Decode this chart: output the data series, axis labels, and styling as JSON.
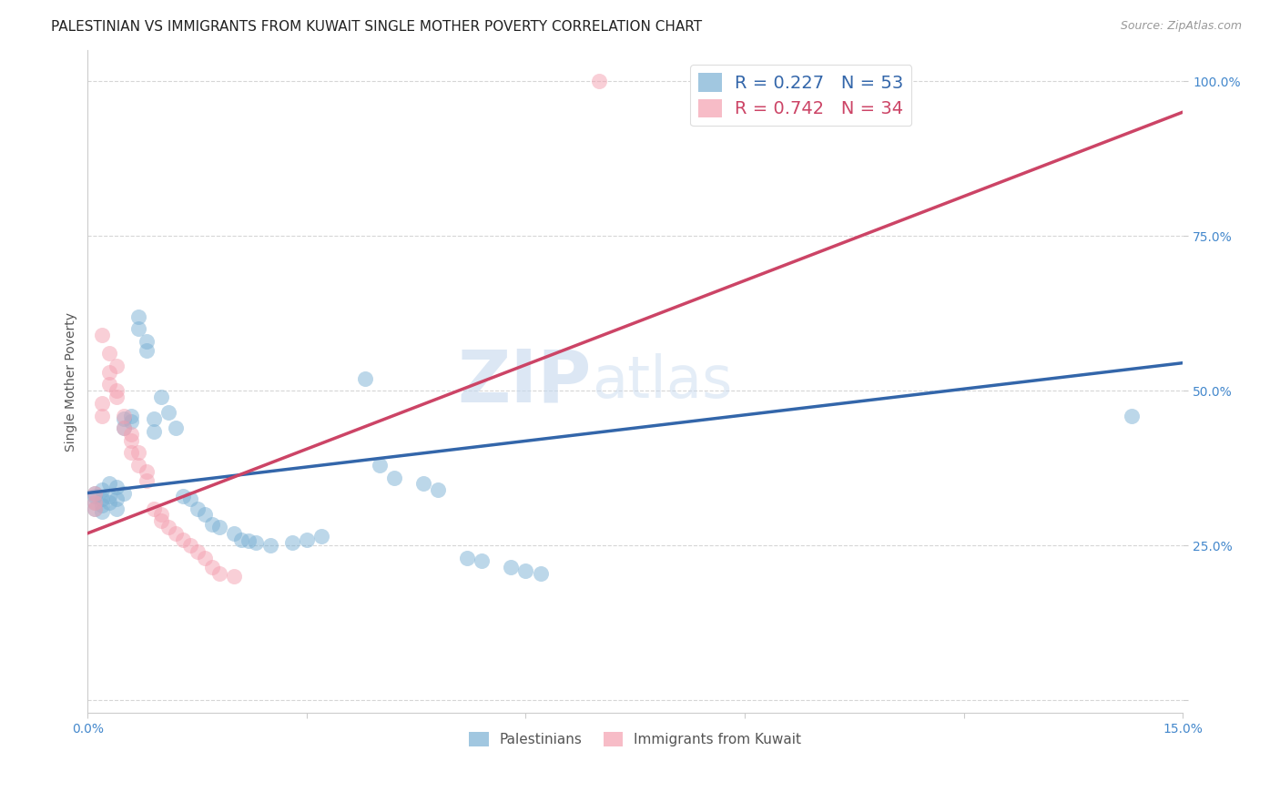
{
  "title": "PALESTINIAN VS IMMIGRANTS FROM KUWAIT SINGLE MOTHER POVERTY CORRELATION CHART",
  "source": "Source: ZipAtlas.com",
  "ylabel": "Single Mother Poverty",
  "xlim": [
    0.0,
    0.15
  ],
  "ylim": [
    -0.02,
    1.05
  ],
  "blue_color": "#7ab0d4",
  "pink_color": "#f4a0b0",
  "blue_line_color": "#3366aa",
  "pink_line_color": "#cc4466",
  "legend_r_blue": "R = 0.227",
  "legend_n_blue": "N = 53",
  "legend_r_pink": "R = 0.742",
  "legend_n_pink": "N = 34",
  "label_blue": "Palestinians",
  "label_pink": "Immigrants from Kuwait",
  "watermark_zip": "ZIP",
  "watermark_atlas": "atlas",
  "title_fontsize": 11,
  "axis_label_fontsize": 10,
  "tick_fontsize": 10,
  "background_color": "#ffffff",
  "grid_color": "#cccccc",
  "blue_points": [
    [
      0.001,
      0.335
    ],
    [
      0.001,
      0.33
    ],
    [
      0.001,
      0.32
    ],
    [
      0.001,
      0.31
    ],
    [
      0.002,
      0.34
    ],
    [
      0.002,
      0.325
    ],
    [
      0.002,
      0.315
    ],
    [
      0.002,
      0.305
    ],
    [
      0.003,
      0.35
    ],
    [
      0.003,
      0.33
    ],
    [
      0.003,
      0.32
    ],
    [
      0.004,
      0.345
    ],
    [
      0.004,
      0.325
    ],
    [
      0.004,
      0.31
    ],
    [
      0.005,
      0.455
    ],
    [
      0.005,
      0.44
    ],
    [
      0.005,
      0.335
    ],
    [
      0.006,
      0.46
    ],
    [
      0.006,
      0.45
    ],
    [
      0.007,
      0.62
    ],
    [
      0.007,
      0.6
    ],
    [
      0.008,
      0.58
    ],
    [
      0.008,
      0.565
    ],
    [
      0.009,
      0.455
    ],
    [
      0.009,
      0.435
    ],
    [
      0.01,
      0.49
    ],
    [
      0.011,
      0.465
    ],
    [
      0.012,
      0.44
    ],
    [
      0.013,
      0.33
    ],
    [
      0.014,
      0.325
    ],
    [
      0.015,
      0.31
    ],
    [
      0.016,
      0.3
    ],
    [
      0.017,
      0.285
    ],
    [
      0.018,
      0.28
    ],
    [
      0.02,
      0.27
    ],
    [
      0.021,
      0.26
    ],
    [
      0.022,
      0.258
    ],
    [
      0.023,
      0.255
    ],
    [
      0.025,
      0.25
    ],
    [
      0.028,
      0.255
    ],
    [
      0.03,
      0.26
    ],
    [
      0.032,
      0.265
    ],
    [
      0.038,
      0.52
    ],
    [
      0.04,
      0.38
    ],
    [
      0.042,
      0.36
    ],
    [
      0.046,
      0.35
    ],
    [
      0.048,
      0.34
    ],
    [
      0.052,
      0.23
    ],
    [
      0.054,
      0.225
    ],
    [
      0.058,
      0.215
    ],
    [
      0.06,
      0.21
    ],
    [
      0.062,
      0.205
    ],
    [
      0.143,
      0.46
    ]
  ],
  "pink_points": [
    [
      0.001,
      0.335
    ],
    [
      0.001,
      0.32
    ],
    [
      0.001,
      0.31
    ],
    [
      0.002,
      0.59
    ],
    [
      0.002,
      0.48
    ],
    [
      0.002,
      0.46
    ],
    [
      0.003,
      0.56
    ],
    [
      0.003,
      0.53
    ],
    [
      0.003,
      0.51
    ],
    [
      0.004,
      0.54
    ],
    [
      0.004,
      0.5
    ],
    [
      0.004,
      0.49
    ],
    [
      0.005,
      0.46
    ],
    [
      0.005,
      0.44
    ],
    [
      0.006,
      0.43
    ],
    [
      0.006,
      0.42
    ],
    [
      0.006,
      0.4
    ],
    [
      0.007,
      0.4
    ],
    [
      0.007,
      0.38
    ],
    [
      0.008,
      0.37
    ],
    [
      0.008,
      0.355
    ],
    [
      0.009,
      0.31
    ],
    [
      0.01,
      0.3
    ],
    [
      0.01,
      0.29
    ],
    [
      0.011,
      0.28
    ],
    [
      0.012,
      0.27
    ],
    [
      0.013,
      0.26
    ],
    [
      0.014,
      0.25
    ],
    [
      0.015,
      0.24
    ],
    [
      0.016,
      0.23
    ],
    [
      0.017,
      0.215
    ],
    [
      0.018,
      0.205
    ],
    [
      0.02,
      0.2
    ],
    [
      0.07,
      1.0
    ]
  ],
  "blue_reg_line": [
    [
      0.0,
      0.335
    ],
    [
      0.15,
      0.545
    ]
  ],
  "pink_reg_line": [
    [
      0.0,
      0.27
    ],
    [
      0.15,
      0.95
    ]
  ]
}
